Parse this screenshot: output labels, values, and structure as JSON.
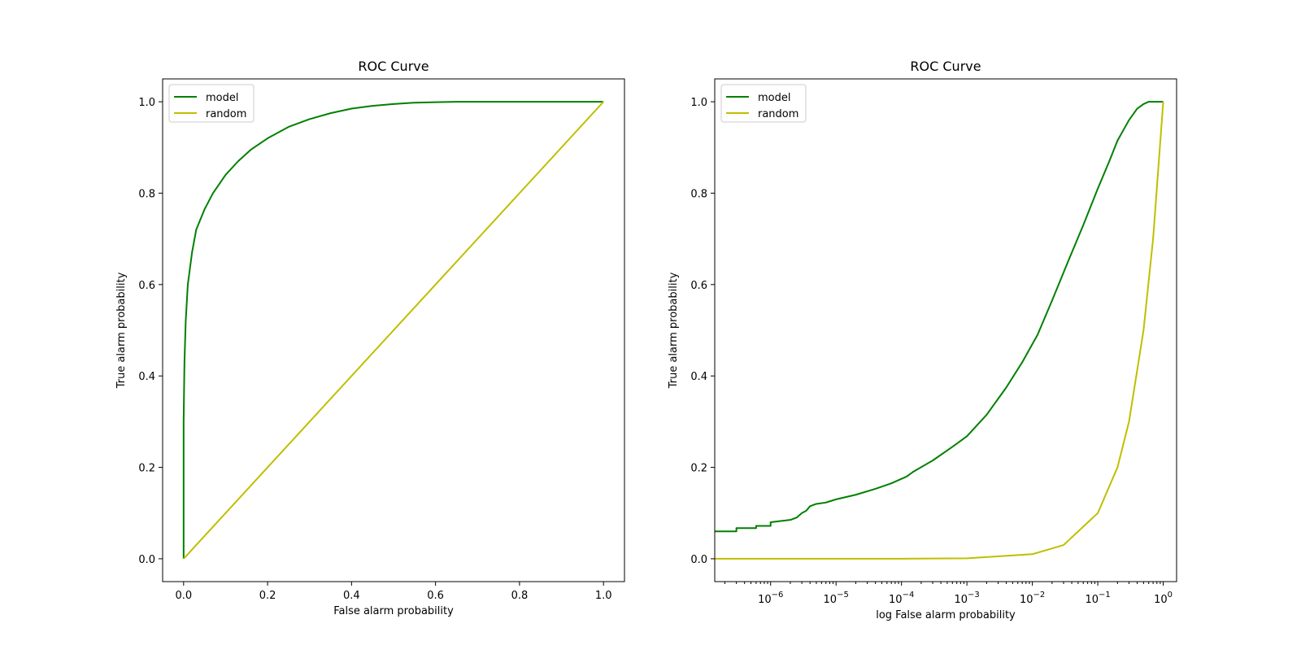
{
  "chart_data": [
    {
      "type": "line",
      "title": "ROC Curve",
      "xlabel": "False alarm probability",
      "ylabel": "True alarm probability",
      "xlim": [
        -0.05,
        1.05
      ],
      "ylim": [
        -0.05,
        1.05
      ],
      "xscale": "linear",
      "xticks": [
        0.0,
        0.2,
        0.4,
        0.6,
        0.8,
        1.0
      ],
      "xtick_labels": [
        "0.0",
        "0.2",
        "0.4",
        "0.6",
        "0.8",
        "1.0"
      ],
      "yticks": [
        0.0,
        0.2,
        0.4,
        0.6,
        0.8,
        1.0
      ],
      "ytick_labels": [
        "0.0",
        "0.2",
        "0.4",
        "0.6",
        "0.8",
        "1.0"
      ],
      "legend": "top-left",
      "grid": false,
      "series": [
        {
          "name": "model",
          "color": "#008000",
          "x": [
            0.0,
            0.0,
            0.002,
            0.005,
            0.01,
            0.02,
            0.03,
            0.05,
            0.07,
            0.1,
            0.13,
            0.16,
            0.2,
            0.25,
            0.3,
            0.35,
            0.4,
            0.45,
            0.5,
            0.55,
            0.6,
            0.65,
            0.7,
            0.8,
            0.9,
            1.0
          ],
          "y": [
            0.0,
            0.3,
            0.43,
            0.52,
            0.6,
            0.67,
            0.72,
            0.765,
            0.8,
            0.84,
            0.87,
            0.895,
            0.92,
            0.945,
            0.962,
            0.975,
            0.985,
            0.991,
            0.995,
            0.998,
            0.999,
            1.0,
            1.0,
            1.0,
            1.0,
            1.0
          ]
        },
        {
          "name": "random",
          "color": "#bfbf00",
          "x": [
            0.0,
            1.0
          ],
          "y": [
            0.0,
            1.0
          ]
        }
      ]
    },
    {
      "type": "line",
      "title": "ROC Curve",
      "xlabel": "log False alarm probability",
      "ylabel": "True alarm probability",
      "xlim": [
        1.4e-07,
        1.6
      ],
      "ylim": [
        -0.05,
        1.05
      ],
      "xscale": "log",
      "xticks": [
        1e-06,
        1e-05,
        0.0001,
        0.001,
        0.01,
        0.1,
        1
      ],
      "xtick_labels": [
        {
          "base": "10",
          "exp": "−6"
        },
        {
          "base": "10",
          "exp": "−5"
        },
        {
          "base": "10",
          "exp": "−4"
        },
        {
          "base": "10",
          "exp": "−3"
        },
        {
          "base": "10",
          "exp": "−2"
        },
        {
          "base": "10",
          "exp": "−1"
        },
        {
          "base": "10",
          "exp": "0"
        }
      ],
      "yticks": [
        0.0,
        0.2,
        0.4,
        0.6,
        0.8,
        1.0
      ],
      "ytick_labels": [
        "0.0",
        "0.2",
        "0.4",
        "0.6",
        "0.8",
        "1.0"
      ],
      "legend": "top-left",
      "grid": false,
      "series": [
        {
          "name": "model",
          "color": "#008000",
          "x": [
            1.4e-07,
            3e-07,
            3e-07,
            6e-07,
            6e-07,
            1e-06,
            1e-06,
            2e-06,
            2.5e-06,
            3e-06,
            3.5e-06,
            4e-06,
            5e-06,
            7e-06,
            1e-05,
            2e-05,
            4e-05,
            7e-05,
            0.00012,
            0.00015,
            0.0003,
            0.0006,
            0.001,
            0.002,
            0.004,
            0.007,
            0.012,
            0.02,
            0.035,
            0.06,
            0.1,
            0.15,
            0.2,
            0.3,
            0.4,
            0.5,
            0.6,
            0.7,
            1.0
          ],
          "y": [
            0.06,
            0.06,
            0.067,
            0.067,
            0.072,
            0.072,
            0.08,
            0.085,
            0.09,
            0.1,
            0.105,
            0.115,
            0.12,
            0.123,
            0.13,
            0.14,
            0.153,
            0.165,
            0.18,
            0.19,
            0.215,
            0.245,
            0.268,
            0.315,
            0.375,
            0.43,
            0.49,
            0.565,
            0.65,
            0.73,
            0.81,
            0.87,
            0.915,
            0.96,
            0.985,
            0.995,
            1.0,
            1.0,
            1.0
          ]
        },
        {
          "name": "random",
          "color": "#bfbf00",
          "x": [
            1.4e-07,
            1e-06,
            1e-05,
            0.0001,
            0.001,
            0.01,
            0.03,
            0.1,
            0.2,
            0.3,
            0.5,
            0.7,
            1.0
          ],
          "y": [
            1.4e-07,
            1e-06,
            1e-05,
            0.0001,
            0.001,
            0.01,
            0.03,
            0.1,
            0.2,
            0.3,
            0.5,
            0.7,
            1.0
          ]
        }
      ]
    }
  ]
}
